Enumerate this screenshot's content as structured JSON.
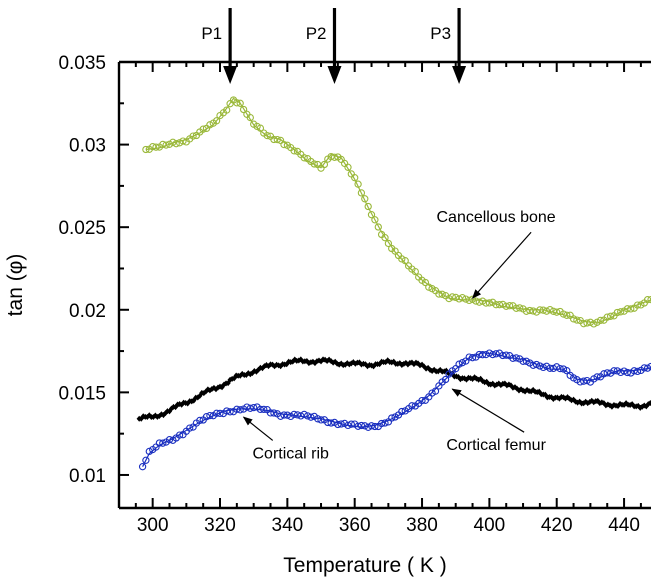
{
  "chart_data": {
    "type": "scatter",
    "title": "",
    "xlabel": "Temperature ( K )",
    "ylabel": "tan (φ)",
    "xlim": [
      290,
      448
    ],
    "ylim": [
      0.008,
      0.035
    ],
    "x_ticks": [
      {
        "value": 300,
        "label": "300"
      },
      {
        "value": 320,
        "label": "320"
      },
      {
        "value": 340,
        "label": "340"
      },
      {
        "value": 360,
        "label": "360"
      },
      {
        "value": 380,
        "label": "380"
      },
      {
        "value": 400,
        "label": "400"
      },
      {
        "value": 420,
        "label": "420"
      },
      {
        "value": 440,
        "label": "440"
      }
    ],
    "y_ticks": [
      {
        "value": 0.01,
        "label": "0.01"
      },
      {
        "value": 0.015,
        "label": "0.015"
      },
      {
        "value": 0.02,
        "label": "0.02"
      },
      {
        "value": 0.025,
        "label": "0.025"
      },
      {
        "value": 0.03,
        "label": "0.03"
      },
      {
        "value": 0.035,
        "label": "0.035"
      }
    ],
    "grid": false,
    "series": [
      {
        "id": "cancellous",
        "color": "#9ab83a",
        "marker": "open-circle",
        "x": [
          298,
          302,
          306,
          310,
          314,
          318,
          322,
          324,
          326,
          330,
          334,
          338,
          342,
          346,
          350,
          353,
          356,
          360,
          364,
          368,
          372,
          376,
          380,
          384,
          388,
          392,
          396,
          400,
          404,
          408,
          412,
          416,
          420,
          424,
          428,
          432,
          436,
          440,
          444,
          448
        ],
        "y": [
          0.0297,
          0.0298,
          0.0301,
          0.0303,
          0.0307,
          0.0312,
          0.0322,
          0.0328,
          0.0325,
          0.0312,
          0.0305,
          0.0303,
          0.0297,
          0.029,
          0.0286,
          0.0294,
          0.0292,
          0.0279,
          0.0262,
          0.0247,
          0.0235,
          0.0226,
          0.0218,
          0.0212,
          0.0207,
          0.0206,
          0.0206,
          0.0205,
          0.0202,
          0.0201,
          0.02,
          0.02,
          0.0198,
          0.0196,
          0.0193,
          0.0192,
          0.0195,
          0.02,
          0.0203,
          0.0206
        ]
      },
      {
        "id": "cortical-rib",
        "color": "#000000",
        "marker": "filled-diamond",
        "x": [
          296,
          300,
          305,
          310,
          315,
          320,
          325,
          330,
          335,
          340,
          345,
          350,
          355,
          360,
          365,
          370,
          375,
          380,
          385,
          390,
          395,
          400,
          405,
          410,
          415,
          420,
          425,
          430,
          435,
          440,
          445,
          448
        ],
        "y": [
          0.0134,
          0.0135,
          0.0139,
          0.0144,
          0.0149,
          0.0154,
          0.0159,
          0.0163,
          0.0166,
          0.0168,
          0.0169,
          0.0169,
          0.0168,
          0.0167,
          0.0167,
          0.0168,
          0.0168,
          0.0166,
          0.0163,
          0.016,
          0.0158,
          0.0156,
          0.0154,
          0.0152,
          0.0149,
          0.0147,
          0.0145,
          0.0144,
          0.0143,
          0.0142,
          0.0142,
          0.0143
        ]
      },
      {
        "id": "cortical-femur",
        "color": "#1a2fc0",
        "marker": "open-circle",
        "x": [
          297,
          299,
          302,
          306,
          310,
          314,
          318,
          322,
          326,
          330,
          334,
          338,
          342,
          346,
          350,
          354,
          358,
          362,
          366,
          370,
          374,
          378,
          382,
          386,
          390,
          394,
          398,
          402,
          406,
          410,
          414,
          418,
          422,
          426,
          430,
          434,
          438,
          442,
          446,
          448
        ],
        "y": [
          0.0105,
          0.0113,
          0.0118,
          0.0122,
          0.0127,
          0.0132,
          0.0136,
          0.0139,
          0.014,
          0.014,
          0.0139,
          0.0137,
          0.0136,
          0.0135,
          0.0134,
          0.0132,
          0.013,
          0.0129,
          0.013,
          0.0133,
          0.0137,
          0.0142,
          0.0148,
          0.0156,
          0.0164,
          0.0171,
          0.0174,
          0.0173,
          0.0171,
          0.017,
          0.0167,
          0.0164,
          0.0164,
          0.0158,
          0.0157,
          0.016,
          0.0163,
          0.0163,
          0.0164,
          0.0165
        ]
      }
    ],
    "annotations": [
      {
        "id": "cancellous",
        "text": "Cancellous bone",
        "text_x": 402,
        "text_y": 0.0253,
        "arrow_to_x": 395,
        "arrow_to_y": 0.0207
      },
      {
        "id": "cortical-femur",
        "text": "Cortical femur",
        "text_x": 402,
        "text_y": 0.0115,
        "arrow_to_x": 389,
        "arrow_to_y": 0.0152
      },
      {
        "id": "cortical-rib",
        "text": "Cortical rib",
        "text_x": 341,
        "text_y": 0.011,
        "arrow_to_x": 327,
        "arrow_to_y": 0.0135
      }
    ],
    "peaks": [
      {
        "label": "P1",
        "x": 323
      },
      {
        "label": "P2",
        "x": 354
      },
      {
        "label": "P3",
        "x": 391
      }
    ]
  }
}
